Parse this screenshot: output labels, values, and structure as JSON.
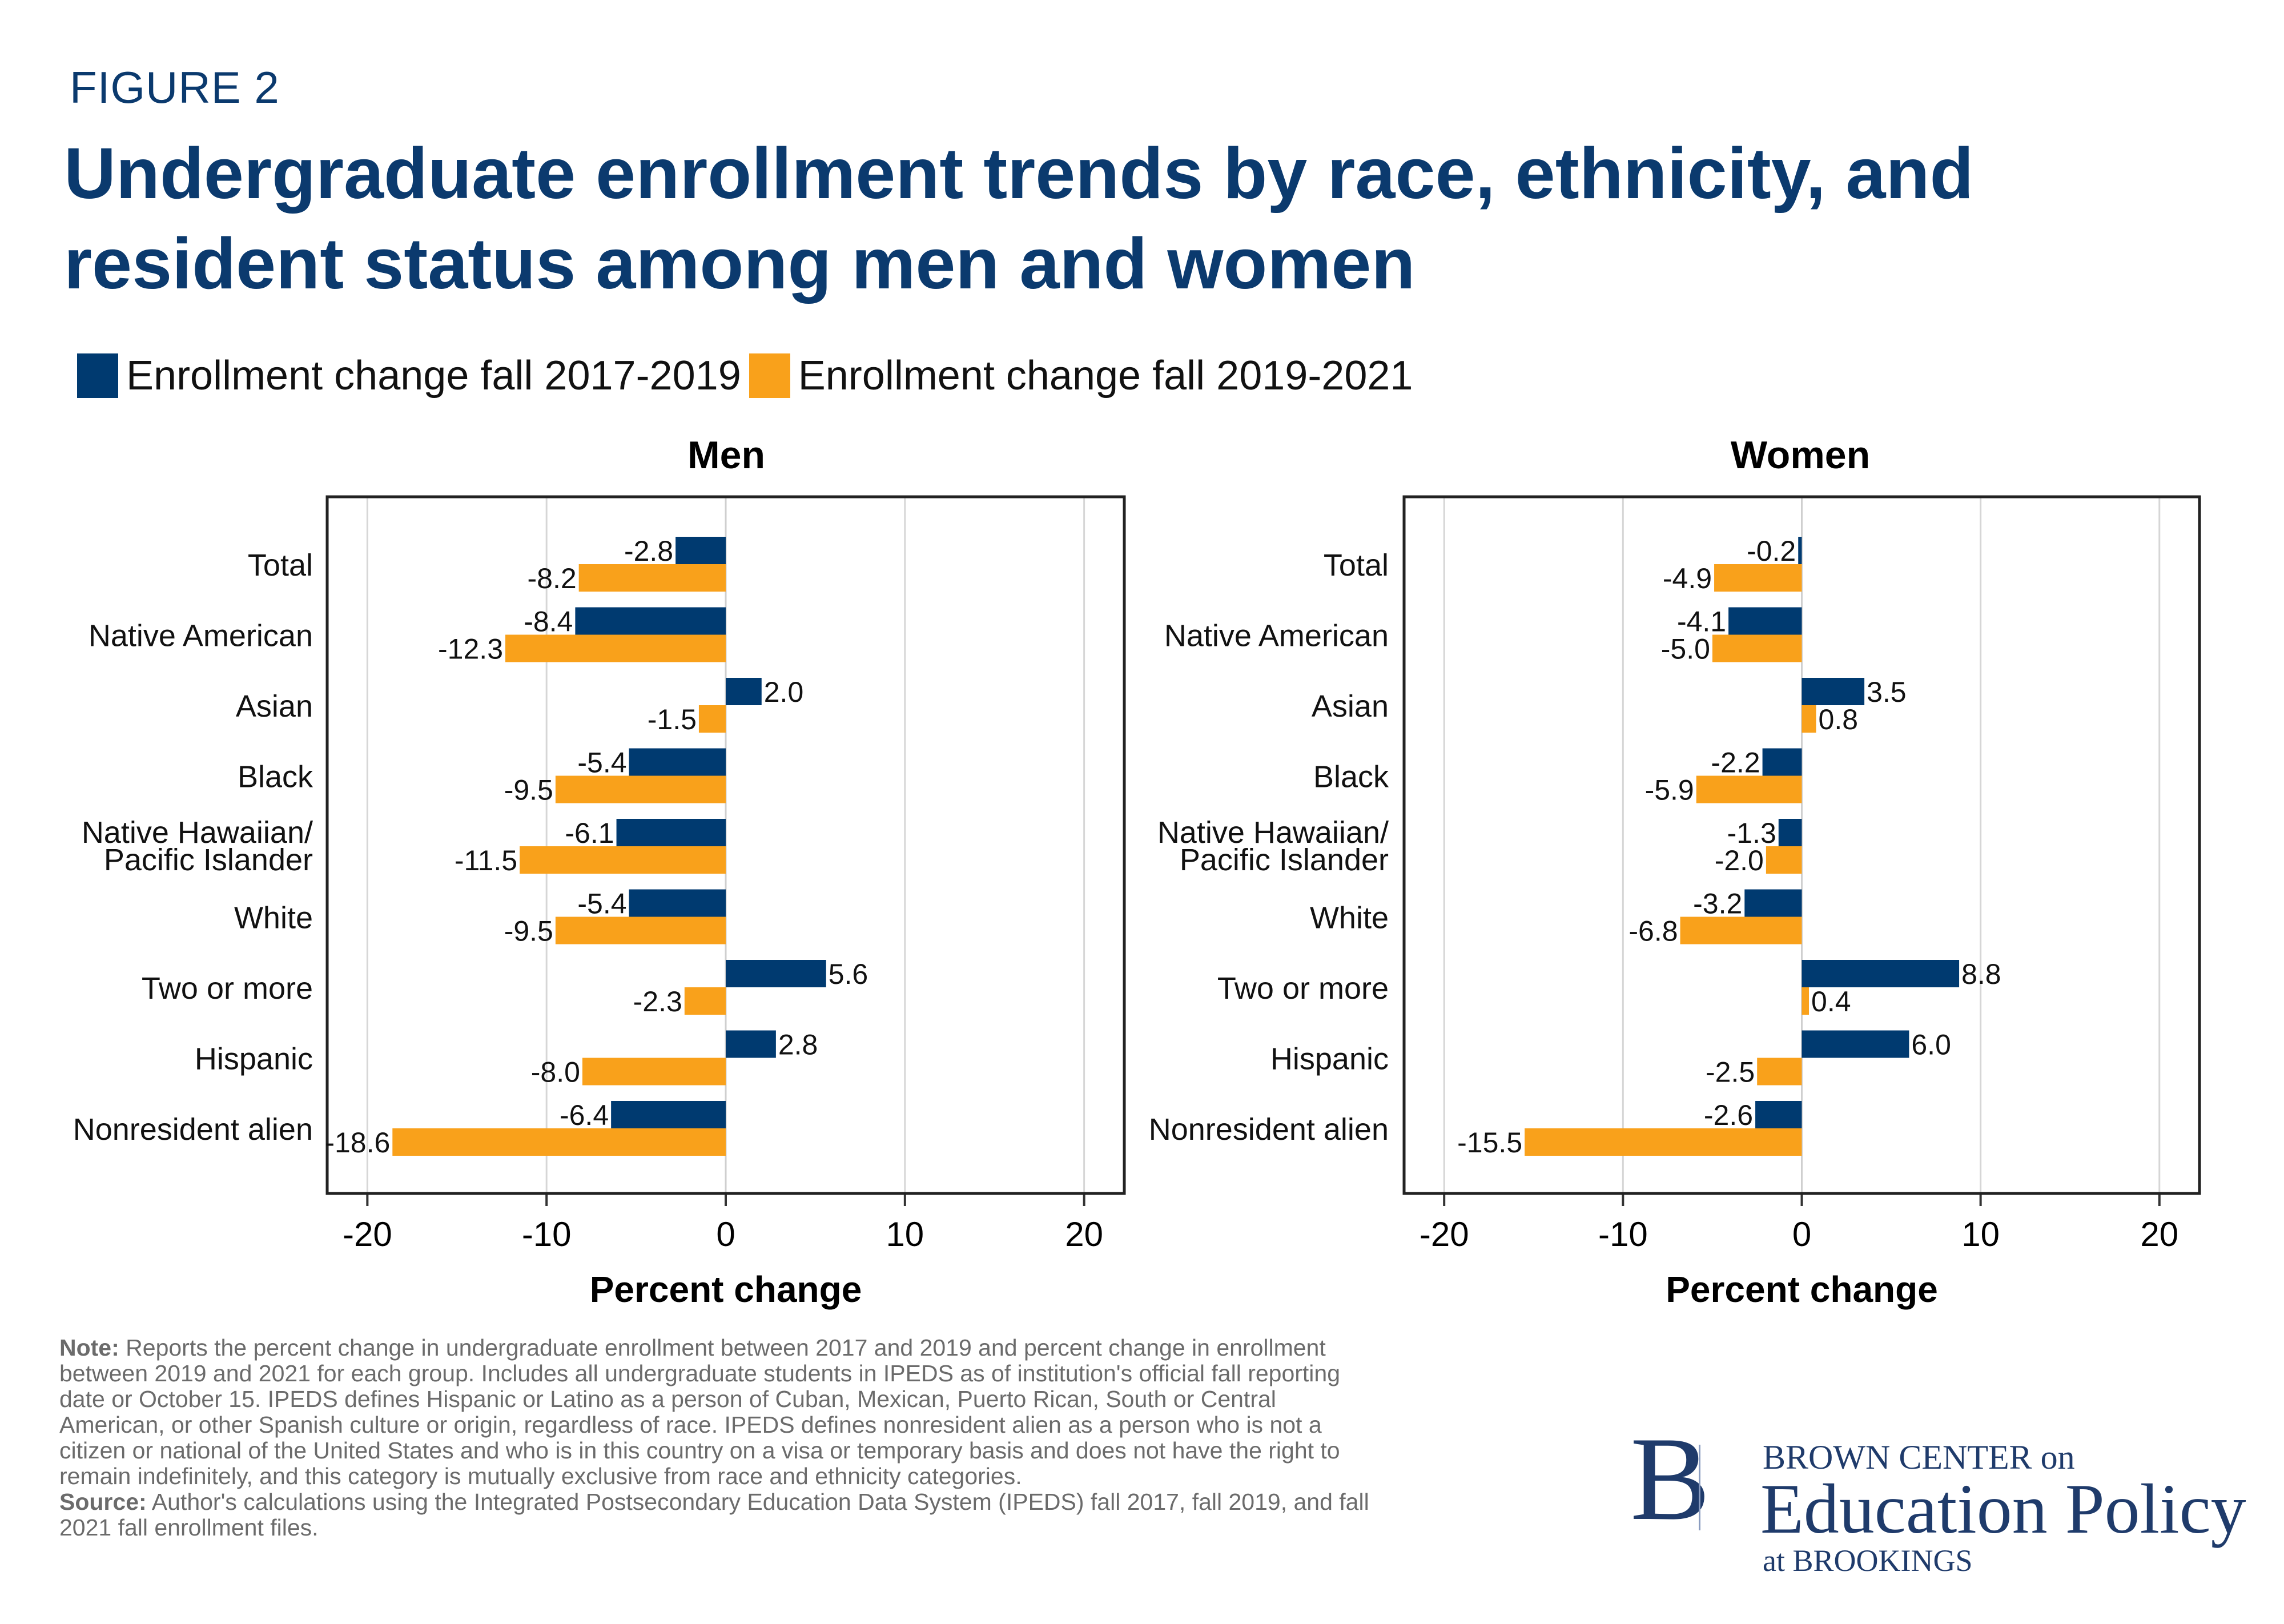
{
  "header": {
    "figure_label": "FIGURE 2",
    "title": "Undergraduate enrollment trends by race, ethnicity, and resident status among men and women"
  },
  "legend": [
    {
      "label": "Enrollment change fall 2017-2019",
      "color": "#003a70"
    },
    {
      "label": "Enrollment change fall 2019-2021",
      "color": "#f9a11b"
    }
  ],
  "chart_data": [
    {
      "type": "bar",
      "orientation": "horizontal",
      "title": "Men",
      "xlabel": "Percent change",
      "ylabel": "",
      "xlim": [
        -22,
        22
      ],
      "xticks": [
        -20,
        -10,
        0,
        10,
        20
      ],
      "grid": true,
      "legend_position": "top",
      "categories": [
        "Total",
        "Native American",
        "Asian",
        "Black",
        "Native Hawaiian/ Pacific Islander",
        "White",
        "Two or more",
        "Hispanic",
        "Nonresident alien"
      ],
      "series": [
        {
          "name": "Enrollment change fall 2017-2019",
          "color": "#003a70",
          "values": [
            -2.8,
            -8.4,
            2.0,
            -5.4,
            -6.1,
            -5.4,
            5.6,
            2.8,
            -6.4
          ]
        },
        {
          "name": "Enrollment change fall 2019-2021",
          "color": "#f9a11b",
          "values": [
            -8.2,
            -12.3,
            -1.5,
            -9.5,
            -11.5,
            -9.5,
            -2.3,
            -8.0,
            -18.6
          ]
        }
      ]
    },
    {
      "type": "bar",
      "orientation": "horizontal",
      "title": "Women",
      "xlabel": "Percent change",
      "ylabel": "",
      "xlim": [
        -22,
        22
      ],
      "xticks": [
        -20,
        -10,
        0,
        10,
        20
      ],
      "grid": true,
      "legend_position": "top",
      "categories": [
        "Total",
        "Native American",
        "Asian",
        "Black",
        "Native Hawaiian/ Pacific Islander",
        "White",
        "Two or more",
        "Hispanic",
        "Nonresident alien"
      ],
      "series": [
        {
          "name": "Enrollment change fall 2017-2019",
          "color": "#003a70",
          "values": [
            -0.2,
            -4.1,
            3.5,
            -2.2,
            -1.3,
            -3.2,
            8.8,
            6.0,
            -2.6
          ]
        },
        {
          "name": "Enrollment change fall 2019-2021",
          "color": "#f9a11b",
          "values": [
            -4.9,
            -5.0,
            0.8,
            -5.9,
            -2.0,
            -6.8,
            0.4,
            -2.5,
            -15.5
          ]
        }
      ]
    }
  ],
  "category_lines": [
    [
      "Total"
    ],
    [
      "Native American"
    ],
    [
      "Asian"
    ],
    [
      "Black"
    ],
    [
      "Native Hawaiian/",
      "Pacific Islander"
    ],
    [
      "White"
    ],
    [
      "Two or more"
    ],
    [
      "Hispanic"
    ],
    [
      "Nonresident alien"
    ]
  ],
  "footer": {
    "note_label": "Note:",
    "note_text": " Reports the percent change in undergraduate enrollment between 2017 and 2019 and percent change in enrollment between 2019 and 2021 for each group. Includes all undergraduate students in IPEDS as of institution's official fall reporting date or October 15. IPEDS defines Hispanic or Latino as a person of Cuban, Mexican, Puerto Rican, South or Central American, or other Spanish culture or origin, regardless of race. IPEDS defines nonresident alien as a person who is not a citizen or national of the United States and who is in this country on a visa or temporary basis and does not have the right to remain indefinitely, and this category is mutually exclusive from race and ethnicity categories.",
    "source_label": "Source:",
    "source_text": " Author's calculations using the Integrated Postsecondary Education Data System (IPEDS) fall 2017, fall 2019, and fall 2021 fall enrollment files."
  },
  "logo": {
    "letter": "B",
    "line1": "BROWN CENTER on",
    "line2": "Education Policy",
    "line3": "at BROOKINGS"
  }
}
